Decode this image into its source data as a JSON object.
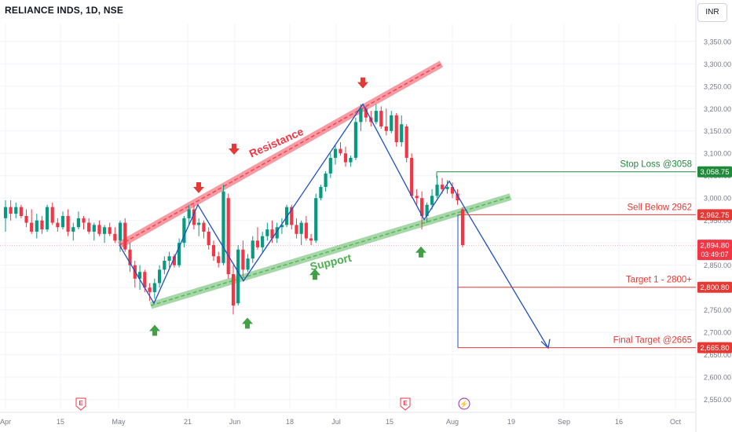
{
  "header": {
    "symbol_title": "RELIANCE INDS, 1D, NSE",
    "currency": "INR"
  },
  "colors": {
    "up": "#089981",
    "down": "#f23645",
    "resistance": "#f23645",
    "support": "#4caf50",
    "trend_line": "#1e4fc2",
    "stop_loss": "#1e8a3a",
    "target": "#e53935",
    "grid": "#f0f3fa"
  },
  "chart_data": {
    "type": "candlestick",
    "ylim": [
      2530,
      3390
    ],
    "y_ticks": [
      2550,
      2600,
      2650,
      2700,
      2750,
      2800,
      2850,
      2900,
      2950,
      3000,
      3050,
      3100,
      3150,
      3200,
      3250,
      3300,
      3350
    ],
    "y_tick_labels": [
      "2,550.00",
      "2,600.00",
      "2,650.00",
      "2,700.00",
      "2,750.00",
      "2,800.00",
      "2,850.00",
      "2,900.00",
      "2,950.00",
      "3,000.00",
      "3,050.00",
      "3,100.00",
      "3,150.00",
      "3,200.00",
      "3,250.00",
      "3,300.00",
      "3,350.00"
    ],
    "x_ticks": [
      {
        "label": "Apr",
        "date": "2024-04-01"
      },
      {
        "label": "15",
        "date": "2024-04-15"
      },
      {
        "label": "May",
        "date": "2024-05-01"
      },
      {
        "label": "21",
        "date": "2024-05-21"
      },
      {
        "label": "Jun",
        "date": "2024-06-03"
      },
      {
        "label": "18",
        "date": "2024-06-18"
      },
      {
        "label": "Jul",
        "date": "2024-07-01"
      },
      {
        "label": "15",
        "date": "2024-07-15"
      },
      {
        "label": "Aug",
        "date": "2024-08-01"
      },
      {
        "label": "19",
        "date": "2024-08-19"
      },
      {
        "label": "Sep",
        "date": "2024-09-02"
      },
      {
        "label": "16",
        "date": "2024-09-16"
      },
      {
        "label": "Oct",
        "date": "2024-10-01"
      }
    ],
    "candles": [
      {
        "o": 2955,
        "h": 2995,
        "l": 2925,
        "c": 2980
      },
      {
        "o": 2980,
        "h": 2995,
        "l": 2950,
        "c": 2965
      },
      {
        "o": 2965,
        "h": 2990,
        "l": 2955,
        "c": 2980
      },
      {
        "o": 2980,
        "h": 2985,
        "l": 2955,
        "c": 2960
      },
      {
        "o": 2960,
        "h": 2975,
        "l": 2935,
        "c": 2945
      },
      {
        "o": 2945,
        "h": 2975,
        "l": 2920,
        "c": 2925
      },
      {
        "o": 2925,
        "h": 2965,
        "l": 2910,
        "c": 2950
      },
      {
        "o": 2950,
        "h": 2960,
        "l": 2920,
        "c": 2930
      },
      {
        "o": 2930,
        "h": 2985,
        "l": 2925,
        "c": 2980
      },
      {
        "o": 2980,
        "h": 2990,
        "l": 2940,
        "c": 2945
      },
      {
        "o": 2945,
        "h": 2955,
        "l": 2925,
        "c": 2935
      },
      {
        "o": 2935,
        "h": 2970,
        "l": 2930,
        "c": 2960
      },
      {
        "o": 2960,
        "h": 2975,
        "l": 2915,
        "c": 2925
      },
      {
        "o": 2925,
        "h": 2945,
        "l": 2905,
        "c": 2935
      },
      {
        "o": 2935,
        "h": 2970,
        "l": 2930,
        "c": 2955
      },
      {
        "o": 2955,
        "h": 2960,
        "l": 2930,
        "c": 2945
      },
      {
        "o": 2945,
        "h": 2955,
        "l": 2920,
        "c": 2925
      },
      {
        "o": 2925,
        "h": 2945,
        "l": 2905,
        "c": 2940
      },
      {
        "o": 2940,
        "h": 2950,
        "l": 2915,
        "c": 2920
      },
      {
        "o": 2920,
        "h": 2940,
        "l": 2900,
        "c": 2935
      },
      {
        "o": 2935,
        "h": 2945,
        "l": 2915,
        "c": 2920
      },
      {
        "o": 2920,
        "h": 2935,
        "l": 2900,
        "c": 2905
      },
      {
        "o": 2905,
        "h": 2950,
        "l": 2880,
        "c": 2945
      },
      {
        "o": 2945,
        "h": 2955,
        "l": 2880,
        "c": 2885
      },
      {
        "o": 2885,
        "h": 2900,
        "l": 2835,
        "c": 2850
      },
      {
        "o": 2850,
        "h": 2860,
        "l": 2800,
        "c": 2820
      },
      {
        "o": 2820,
        "h": 2850,
        "l": 2795,
        "c": 2835
      },
      {
        "o": 2835,
        "h": 2840,
        "l": 2790,
        "c": 2800
      },
      {
        "o": 2800,
        "h": 2810,
        "l": 2770,
        "c": 2790
      },
      {
        "o": 2790,
        "h": 2820,
        "l": 2775,
        "c": 2810
      },
      {
        "o": 2810,
        "h": 2850,
        "l": 2800,
        "c": 2840
      },
      {
        "o": 2840,
        "h": 2870,
        "l": 2830,
        "c": 2860
      },
      {
        "o": 2860,
        "h": 2880,
        "l": 2845,
        "c": 2870
      },
      {
        "o": 2870,
        "h": 2875,
        "l": 2845,
        "c": 2850
      },
      {
        "o": 2850,
        "h": 2910,
        "l": 2845,
        "c": 2900
      },
      {
        "o": 2900,
        "h": 2960,
        "l": 2890,
        "c": 2955
      },
      {
        "o": 2955,
        "h": 2985,
        "l": 2940,
        "c": 2975
      },
      {
        "o": 2975,
        "h": 2985,
        "l": 2930,
        "c": 2940
      },
      {
        "o": 2940,
        "h": 2955,
        "l": 2915,
        "c": 2945
      },
      {
        "o": 2945,
        "h": 2950,
        "l": 2910,
        "c": 2925
      },
      {
        "o": 2925,
        "h": 2935,
        "l": 2885,
        "c": 2895
      },
      {
        "o": 2895,
        "h": 2905,
        "l": 2860,
        "c": 2870
      },
      {
        "o": 2870,
        "h": 2880,
        "l": 2845,
        "c": 2855
      },
      {
        "o": 2855,
        "h": 3030,
        "l": 2850,
        "c": 3015
      },
      {
        "o": 3000,
        "h": 3010,
        "l": 2820,
        "c": 2830
      },
      {
        "o": 2830,
        "h": 2850,
        "l": 2740,
        "c": 2760
      },
      {
        "o": 2765,
        "h": 2895,
        "l": 2760,
        "c": 2885
      },
      {
        "o": 2885,
        "h": 2905,
        "l": 2825,
        "c": 2840
      },
      {
        "o": 2840,
        "h": 2875,
        "l": 2835,
        "c": 2865
      },
      {
        "o": 2865,
        "h": 2915,
        "l": 2855,
        "c": 2905
      },
      {
        "o": 2905,
        "h": 2935,
        "l": 2885,
        "c": 2890
      },
      {
        "o": 2890,
        "h": 2925,
        "l": 2880,
        "c": 2915
      },
      {
        "o": 2915,
        "h": 2945,
        "l": 2905,
        "c": 2930
      },
      {
        "o": 2930,
        "h": 2950,
        "l": 2900,
        "c": 2910
      },
      {
        "o": 2910,
        "h": 2945,
        "l": 2900,
        "c": 2935
      },
      {
        "o": 2935,
        "h": 2955,
        "l": 2920,
        "c": 2940
      },
      {
        "o": 2940,
        "h": 2985,
        "l": 2935,
        "c": 2980
      },
      {
        "o": 2980,
        "h": 2985,
        "l": 2930,
        "c": 2940
      },
      {
        "o": 2940,
        "h": 2955,
        "l": 2910,
        "c": 2920
      },
      {
        "o": 2920,
        "h": 2950,
        "l": 2895,
        "c": 2945
      },
      {
        "o": 2945,
        "h": 2960,
        "l": 2905,
        "c": 2910
      },
      {
        "o": 2910,
        "h": 2920,
        "l": 2895,
        "c": 2905
      },
      {
        "o": 2905,
        "h": 3010,
        "l": 2900,
        "c": 3000
      },
      {
        "o": 3000,
        "h": 3030,
        "l": 2995,
        "c": 3025
      },
      {
        "o": 3025,
        "h": 3060,
        "l": 3015,
        "c": 3055
      },
      {
        "o": 3055,
        "h": 3100,
        "l": 3045,
        "c": 3090
      },
      {
        "o": 3090,
        "h": 3120,
        "l": 3075,
        "c": 3110
      },
      {
        "o": 3110,
        "h": 3125,
        "l": 3095,
        "c": 3100
      },
      {
        "o": 3100,
        "h": 3115,
        "l": 3070,
        "c": 3080
      },
      {
        "o": 3080,
        "h": 3095,
        "l": 3070,
        "c": 3090
      },
      {
        "o": 3090,
        "h": 3180,
        "l": 3085,
        "c": 3170
      },
      {
        "o": 3170,
        "h": 3210,
        "l": 3150,
        "c": 3200
      },
      {
        "o": 3200,
        "h": 3205,
        "l": 3170,
        "c": 3180
      },
      {
        "o": 3180,
        "h": 3195,
        "l": 3160,
        "c": 3170
      },
      {
        "o": 3170,
        "h": 3210,
        "l": 3165,
        "c": 3195
      },
      {
        "o": 3195,
        "h": 3205,
        "l": 3155,
        "c": 3160
      },
      {
        "o": 3160,
        "h": 3200,
        "l": 3140,
        "c": 3150
      },
      {
        "o": 3150,
        "h": 3195,
        "l": 3145,
        "c": 3185
      },
      {
        "o": 3185,
        "h": 3190,
        "l": 3115,
        "c": 3125
      },
      {
        "o": 3125,
        "h": 3185,
        "l": 3115,
        "c": 3165
      },
      {
        "o": 3160,
        "h": 3165,
        "l": 3080,
        "c": 3090
      },
      {
        "o": 3090,
        "h": 3100,
        "l": 3000,
        "c": 3005
      },
      {
        "o": 3005,
        "h": 3020,
        "l": 2985,
        "c": 3000
      },
      {
        "o": 3000,
        "h": 3015,
        "l": 2930,
        "c": 2960
      },
      {
        "o": 2960,
        "h": 2990,
        "l": 2945,
        "c": 2985
      },
      {
        "o": 2985,
        "h": 3020,
        "l": 2975,
        "c": 3005
      },
      {
        "o": 3005,
        "h": 3050,
        "l": 3000,
        "c": 3030
      },
      {
        "o": 3030,
        "h": 3045,
        "l": 3010,
        "c": 3020
      },
      {
        "o": 3020,
        "h": 3040,
        "l": 3010,
        "c": 3025
      },
      {
        "o": 3025,
        "h": 3035,
        "l": 3000,
        "c": 3010
      },
      {
        "o": 3010,
        "h": 3020,
        "l": 2985,
        "c": 2995
      },
      {
        "o": 2975,
        "h": 2980,
        "l": 2890,
        "c": 2895
      }
    ],
    "price_labels": [
      {
        "value": 3058.75,
        "label": "3,058.75",
        "kind": "stop"
      },
      {
        "value": 2962.75,
        "label": "2,962.75",
        "kind": "target"
      },
      {
        "value": 2894.8,
        "label": "2,894.80",
        "sub": "03:49:07",
        "kind": "last"
      },
      {
        "value": 2800.8,
        "label": "2,800.80",
        "kind": "target"
      },
      {
        "value": 2665.8,
        "label": "2,665.80",
        "kind": "target"
      }
    ],
    "levels": [
      {
        "name": "Stop Loss @3058",
        "value": 3058.75
      },
      {
        "name": "Sell Below 2962",
        "value": 2962.75
      },
      {
        "name": "Target 1 - 2800+",
        "value": 2800.8
      },
      {
        "name": "Final Target @2665",
        "value": 2665.8
      }
    ],
    "annotations": {
      "resistance": "Resistance",
      "support": "Support"
    },
    "event_markers": [
      "E",
      "E",
      "⚡"
    ]
  }
}
